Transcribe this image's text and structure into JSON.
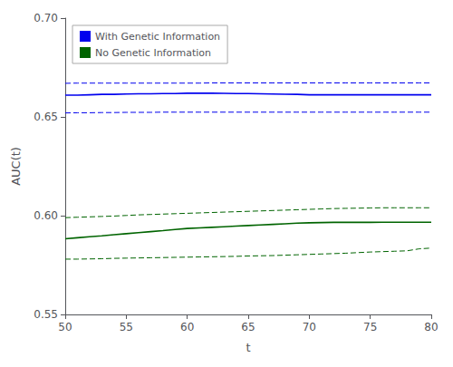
{
  "chart_data": {
    "type": "line",
    "x": [
      50,
      51,
      52,
      53,
      54,
      55,
      56,
      57,
      58,
      59,
      60,
      61,
      62,
      63,
      64,
      65,
      66,
      67,
      68,
      69,
      70,
      71,
      72,
      73,
      74,
      75,
      76,
      77,
      78,
      79,
      80
    ],
    "series": [
      {
        "name": "With Genetic Information",
        "color": "#0000EE",
        "values": [
          0.661,
          0.661,
          0.6612,
          0.6614,
          0.6614,
          0.6616,
          0.6617,
          0.6617,
          0.6618,
          0.6618,
          0.662,
          0.662,
          0.662,
          0.6619,
          0.6618,
          0.6618,
          0.6617,
          0.6616,
          0.6615,
          0.6614,
          0.6612,
          0.6612,
          0.6612,
          0.6612,
          0.6612,
          0.6612,
          0.6612,
          0.6612,
          0.6612,
          0.6612,
          0.6612
        ],
        "upper": [
          0.667,
          0.6671,
          0.6671,
          0.6671,
          0.6671,
          0.6671,
          0.6671,
          0.6671,
          0.6671,
          0.6671,
          0.6671,
          0.6671,
          0.6672,
          0.6672,
          0.6672,
          0.6672,
          0.6672,
          0.6672,
          0.6672,
          0.6672,
          0.6672,
          0.6672,
          0.6672,
          0.6672,
          0.6672,
          0.6672,
          0.6672,
          0.6672,
          0.6672,
          0.6672,
          0.6672
        ],
        "lower": [
          0.652,
          0.6521,
          0.6521,
          0.6522,
          0.6522,
          0.6523,
          0.6523,
          0.6523,
          0.6524,
          0.6524,
          0.6524,
          0.6524,
          0.6524,
          0.6524,
          0.6524,
          0.6524,
          0.6524,
          0.6524,
          0.6524,
          0.6524,
          0.6524,
          0.6524,
          0.6524,
          0.6524,
          0.6524,
          0.6524,
          0.6524,
          0.6524,
          0.6524,
          0.6524,
          0.6524
        ]
      },
      {
        "name": "No Genetic Information",
        "color": "#006400",
        "values": [
          0.5883,
          0.5888,
          0.5893,
          0.5898,
          0.5904,
          0.5909,
          0.5914,
          0.5919,
          0.5924,
          0.593,
          0.5935,
          0.5938,
          0.5941,
          0.5944,
          0.5947,
          0.595,
          0.5953,
          0.5956,
          0.5959,
          0.5962,
          0.5964,
          0.5965,
          0.5966,
          0.5966,
          0.5966,
          0.5966,
          0.5967,
          0.5967,
          0.5967,
          0.5967,
          0.5967
        ],
        "upper": [
          0.599,
          0.5992,
          0.5994,
          0.5996,
          0.5998,
          0.6001,
          0.6004,
          0.6006,
          0.6008,
          0.601,
          0.6012,
          0.6014,
          0.6016,
          0.6018,
          0.602,
          0.6022,
          0.6024,
          0.6026,
          0.6028,
          0.603,
          0.6032,
          0.6034,
          0.6036,
          0.6037,
          0.6038,
          0.6039,
          0.604,
          0.604,
          0.604,
          0.604,
          0.604
        ],
        "lower": [
          0.578,
          0.578,
          0.5781,
          0.5782,
          0.5784,
          0.5785,
          0.5786,
          0.5787,
          0.5788,
          0.5789,
          0.579,
          0.5791,
          0.5792,
          0.5793,
          0.5794,
          0.5796,
          0.5797,
          0.5798,
          0.58,
          0.5802,
          0.5804,
          0.5806,
          0.5808,
          0.581,
          0.5813,
          0.5816,
          0.5818,
          0.582,
          0.5822,
          0.5832,
          0.5836
        ]
      }
    ],
    "xlabel": "t",
    "ylabel": "AUC(t)",
    "xlim": [
      50,
      80
    ],
    "ylim": [
      0.55,
      0.7
    ],
    "xticks": [
      50,
      55,
      60,
      65,
      70,
      75,
      80
    ],
    "yticks": [
      0.55,
      {
        "value": 0.6,
        "label": "0.60"
      },
      0.65,
      {
        "value": 0.7,
        "label": "0.70"
      }
    ],
    "grid": false,
    "legend": "upper left"
  }
}
